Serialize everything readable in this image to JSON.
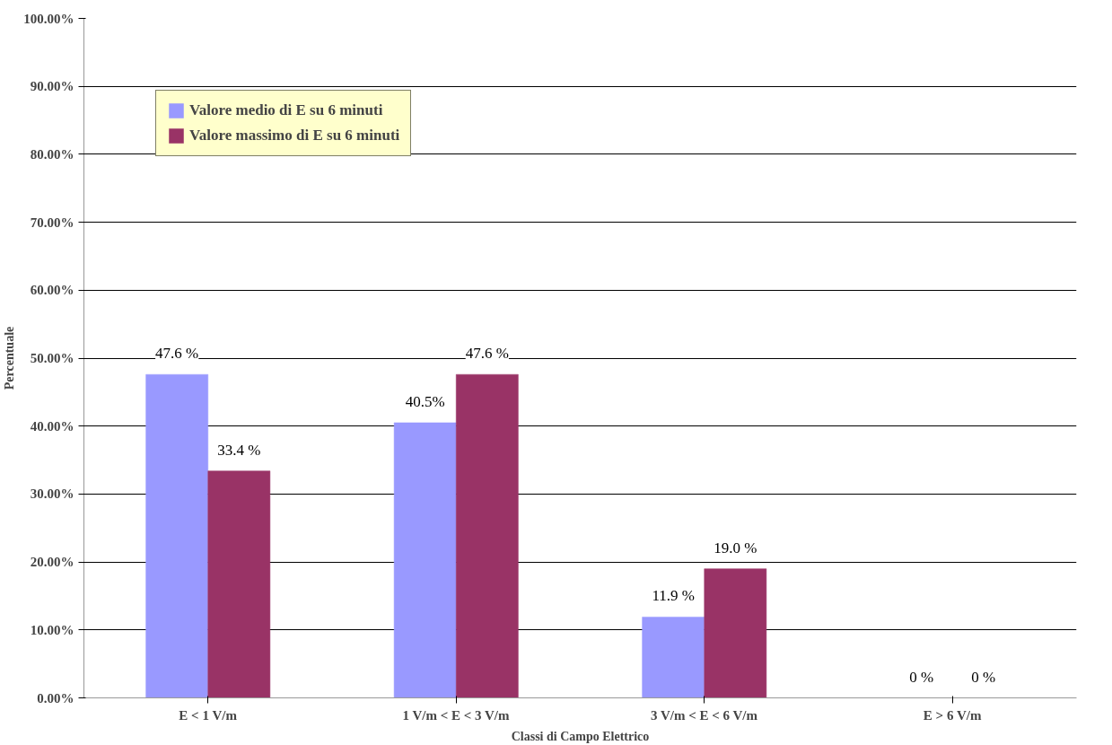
{
  "chart_data": {
    "type": "bar",
    "xlabel": "Classi di Campo Elettrico",
    "ylabel": "Percentuale",
    "categories": [
      "E < 1 V/m",
      "1 V/m < E < 3 V/m",
      "3 V/m < E < 6 V/m",
      "E > 6 V/m"
    ],
    "series": [
      {
        "name": "Valore medio di E su 6 minuti",
        "color": "#9999ff",
        "values": [
          47.6,
          40.5,
          11.9,
          0
        ],
        "value_labels": [
          "47.6 %",
          "40.5%",
          "11.9 %",
          "0 %"
        ]
      },
      {
        "name": "Valore massimo di E su 6 minuti",
        "color": "#993366",
        "values": [
          33.4,
          47.6,
          19.0,
          0
        ],
        "value_labels": [
          "33.4 %",
          "47.6 %",
          "19.0 %",
          "0 %"
        ]
      }
    ],
    "ylim": [
      0,
      100
    ],
    "yticks": [
      {
        "value": 0,
        "label": "0.00%"
      },
      {
        "value": 10,
        "label": "10.00%"
      },
      {
        "value": 20,
        "label": "20.00%"
      },
      {
        "value": 30,
        "label": "30.00%"
      },
      {
        "value": 40,
        "label": "40.00%"
      },
      {
        "value": 50,
        "label": "50.00%"
      },
      {
        "value": 60,
        "label": "60.00%"
      },
      {
        "value": 70,
        "label": "70.00%"
      },
      {
        "value": 80,
        "label": "80.00%"
      },
      {
        "value": 90,
        "label": "90.00%"
      },
      {
        "value": 100,
        "label": "100.00%"
      }
    ],
    "grid": "y",
    "legend": "top left"
  }
}
